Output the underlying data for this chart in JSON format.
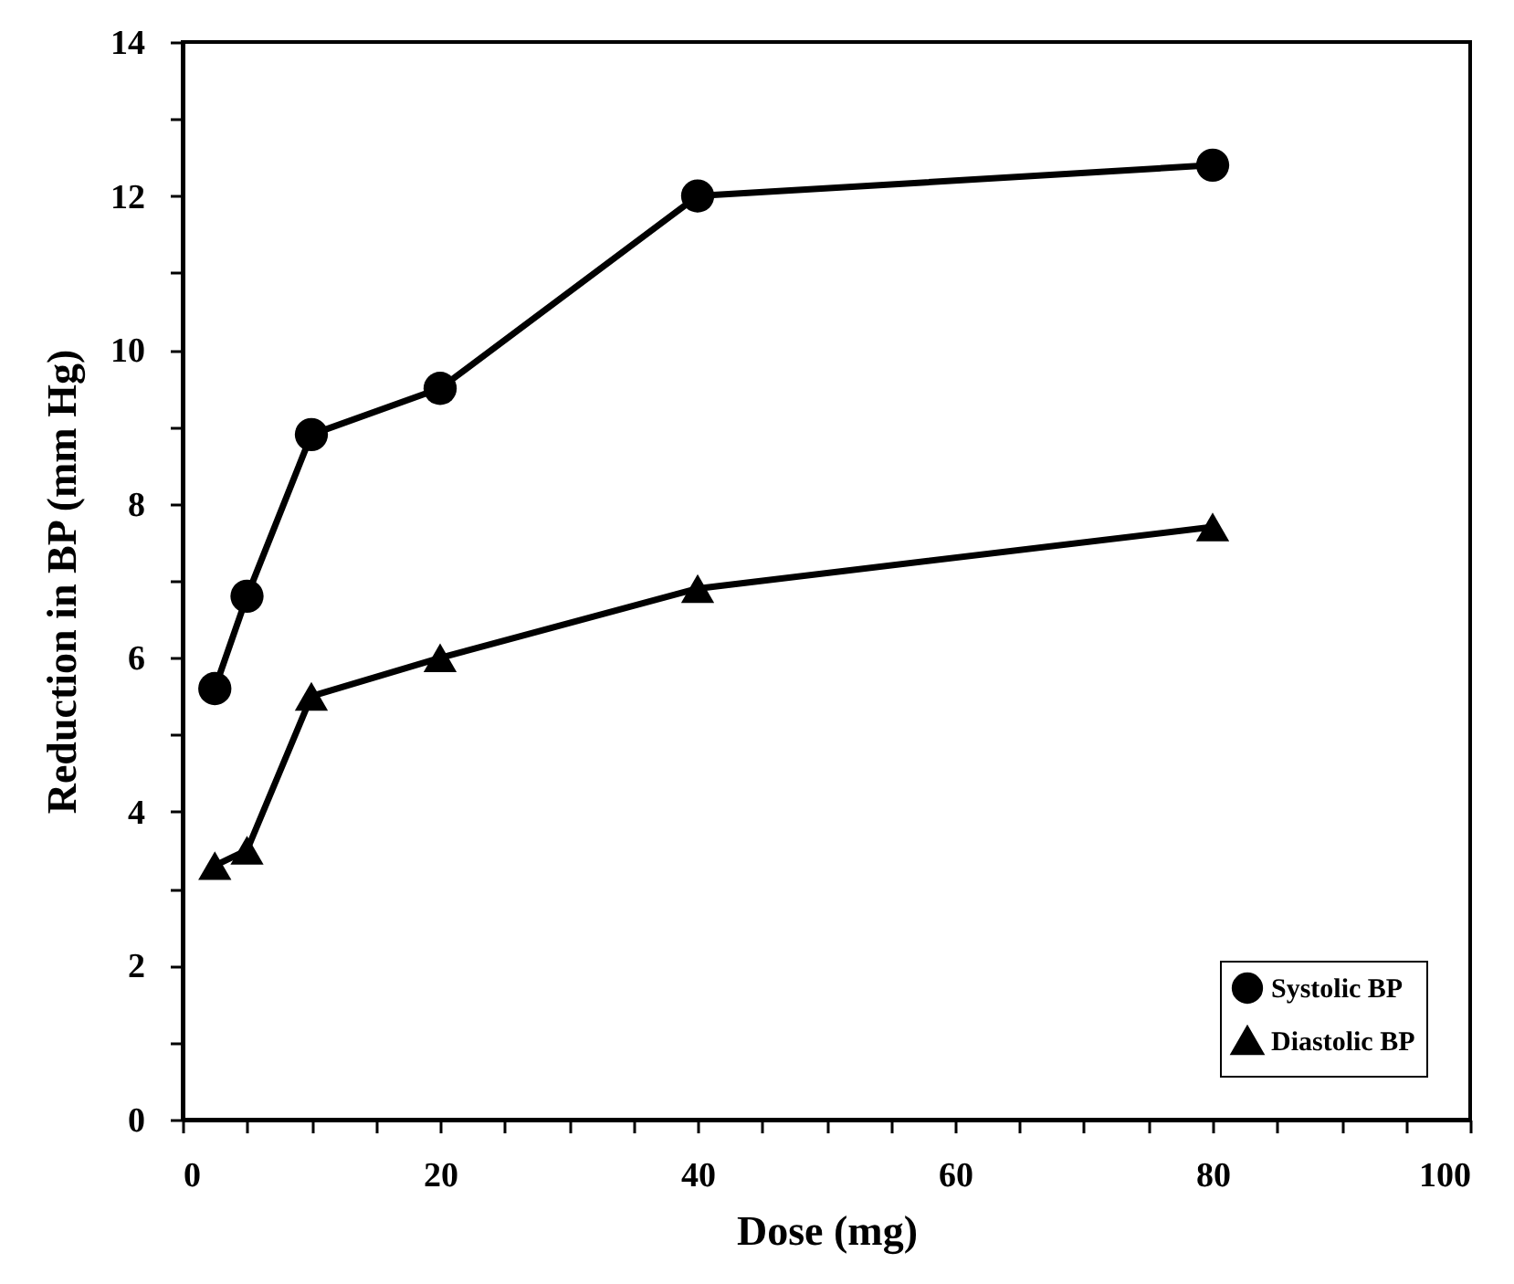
{
  "chart_data": {
    "type": "line",
    "xlabel": "Dose (mg)",
    "ylabel": "Reduction in BP (mm Hg)",
    "x": [
      2.5,
      5,
      10,
      20,
      40,
      80
    ],
    "series": [
      {
        "name": "Systolic BP",
        "color": "#000000",
        "marker": "circle",
        "values": [
          5.6,
          6.8,
          8.9,
          9.5,
          12.0,
          12.4
        ]
      },
      {
        "name": "Diastolic BP",
        "color": "#000000",
        "marker": "triangle",
        "values": [
          3.3,
          3.5,
          5.5,
          6.0,
          6.9,
          7.7
        ]
      }
    ],
    "xlim": [
      0,
      100
    ],
    "xticks": [
      0,
      {
        "value": 5,
        "label": null
      },
      {
        "value": 10,
        "label": null
      },
      {
        "value": 15,
        "label": null
      },
      20,
      {
        "value": 25,
        "label": null
      },
      {
        "value": 30,
        "label": null
      },
      {
        "value": 35,
        "label": null
      },
      40,
      {
        "value": 45,
        "label": null
      },
      {
        "value": 50,
        "label": null
      },
      {
        "value": 55,
        "label": null
      },
      60,
      {
        "value": 65,
        "label": null
      },
      {
        "value": 70,
        "label": null
      },
      {
        "value": 75,
        "label": null
      },
      80,
      {
        "value": 85,
        "label": null
      },
      {
        "value": 90,
        "label": null
      },
      {
        "value": 95,
        "label": null
      },
      100
    ],
    "ylim": [
      0,
      14
    ],
    "yticks": [
      0,
      {
        "value": 1,
        "label": null
      },
      2,
      {
        "value": 3,
        "label": null
      },
      4,
      {
        "value": 5,
        "label": null
      },
      6,
      {
        "value": 7,
        "label": null
      },
      8,
      {
        "value": 9,
        "label": null
      },
      10,
      {
        "value": 11,
        "label": null
      },
      12,
      {
        "value": 13,
        "label": null
      },
      14
    ],
    "grid": false,
    "legend": "bottom right",
    "line_style": "solid"
  }
}
